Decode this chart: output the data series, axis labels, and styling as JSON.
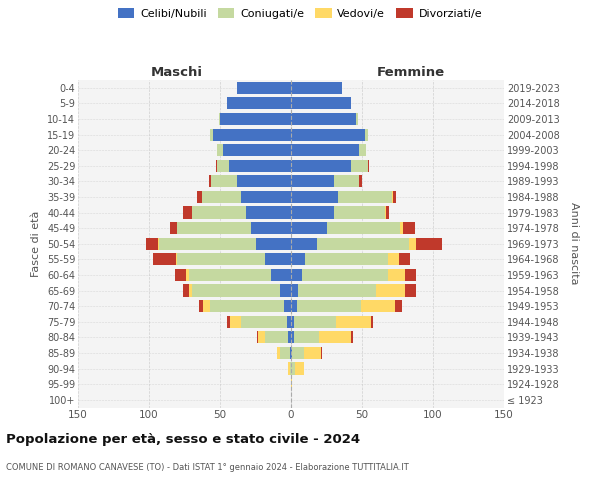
{
  "age_groups": [
    "100+",
    "95-99",
    "90-94",
    "85-89",
    "80-84",
    "75-79",
    "70-74",
    "65-69",
    "60-64",
    "55-59",
    "50-54",
    "45-49",
    "40-44",
    "35-39",
    "30-34",
    "25-29",
    "20-24",
    "15-19",
    "10-14",
    "5-9",
    "0-4"
  ],
  "birth_years": [
    "≤ 1923",
    "1924-1928",
    "1929-1933",
    "1934-1938",
    "1939-1943",
    "1944-1948",
    "1949-1953",
    "1954-1958",
    "1959-1963",
    "1964-1968",
    "1969-1973",
    "1974-1978",
    "1979-1983",
    "1984-1988",
    "1989-1993",
    "1994-1998",
    "1999-2003",
    "2004-2008",
    "2009-2013",
    "2014-2018",
    "2019-2023"
  ],
  "maschi": {
    "celibi": [
      0,
      0,
      0,
      1,
      2,
      3,
      5,
      8,
      14,
      18,
      25,
      28,
      32,
      35,
      38,
      44,
      48,
      55,
      50,
      45,
      38
    ],
    "coniugati": [
      0,
      0,
      1,
      7,
      16,
      32,
      52,
      62,
      58,
      62,
      68,
      52,
      38,
      28,
      18,
      8,
      4,
      2,
      1,
      0,
      0
    ],
    "vedovi": [
      0,
      0,
      1,
      2,
      5,
      8,
      5,
      2,
      2,
      1,
      1,
      0,
      0,
      0,
      0,
      0,
      0,
      0,
      0,
      0,
      0
    ],
    "divorziati": [
      0,
      0,
      0,
      0,
      1,
      2,
      3,
      4,
      8,
      16,
      8,
      5,
      6,
      3,
      2,
      1,
      0,
      0,
      0,
      0,
      0
    ]
  },
  "femmine": {
    "nubili": [
      0,
      0,
      0,
      1,
      2,
      2,
      4,
      5,
      8,
      10,
      18,
      25,
      30,
      33,
      30,
      42,
      48,
      52,
      46,
      42,
      36
    ],
    "coniugate": [
      0,
      0,
      3,
      8,
      18,
      30,
      45,
      55,
      60,
      58,
      65,
      52,
      36,
      38,
      18,
      12,
      5,
      2,
      1,
      0,
      0
    ],
    "vedove": [
      0,
      1,
      6,
      12,
      22,
      24,
      24,
      20,
      12,
      8,
      5,
      2,
      1,
      1,
      0,
      0,
      0,
      0,
      0,
      0,
      0
    ],
    "divorziate": [
      0,
      0,
      0,
      1,
      2,
      2,
      5,
      8,
      8,
      8,
      18,
      8,
      2,
      2,
      2,
      1,
      0,
      0,
      0,
      0,
      0
    ]
  },
  "colors": {
    "celibi": "#4472c4",
    "coniugati": "#c5d9a0",
    "vedovi": "#ffd966",
    "divorziati": "#c0392b"
  },
  "xlim": 150,
  "xtick_vals": [
    -150,
    -100,
    -50,
    0,
    50,
    100,
    150
  ],
  "xtick_labels": [
    "150",
    "100",
    "50",
    "0",
    "50",
    "100",
    "150"
  ],
  "title": "Popolazione per età, sesso e stato civile - 2024",
  "subtitle": "COMUNE DI ROMANO CANAVESE (TO) - Dati ISTAT 1° gennaio 2024 - Elaborazione TUTTITALIA.IT",
  "ylabel": "Fasce di età",
  "right_ylabel": "Anni di nascita",
  "maschi_label": "Maschi",
  "femmine_label": "Femmine",
  "legend_labels": [
    "Celibi/Nubili",
    "Coniugati/e",
    "Vedovi/e",
    "Divorziati/e"
  ],
  "bg_color": "#f4f4f4",
  "grid_color": "#cccccc",
  "bar_height": 0.78
}
